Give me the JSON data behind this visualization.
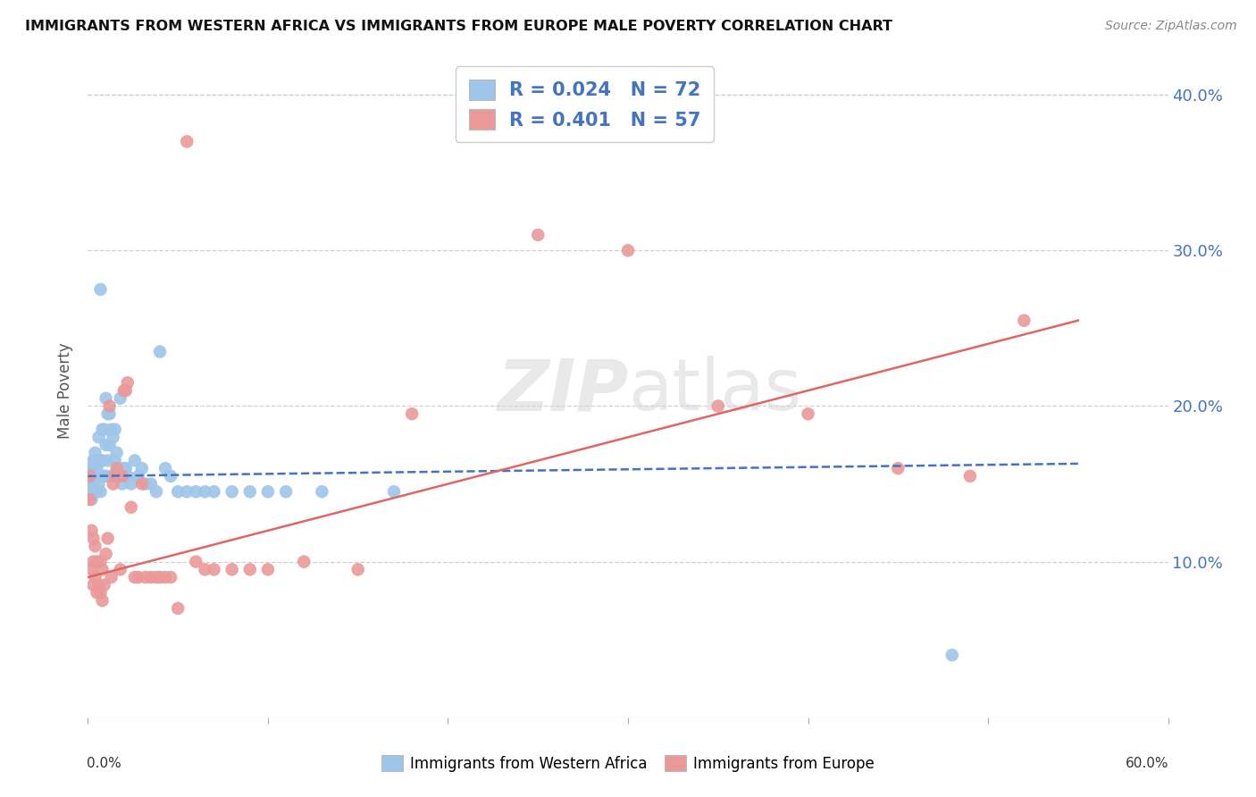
{
  "title": "IMMIGRANTS FROM WESTERN AFRICA VS IMMIGRANTS FROM EUROPE MALE POVERTY CORRELATION CHART",
  "source": "Source: ZipAtlas.com",
  "ylabel": "Male Poverty",
  "xlim": [
    0.0,
    0.6
  ],
  "ylim": [
    0.0,
    0.42
  ],
  "ytick_vals": [
    0.1,
    0.2,
    0.3,
    0.4
  ],
  "ytick_labels": [
    "10.0%",
    "20.0%",
    "30.0%",
    "40.0%"
  ],
  "series1_name": "Immigrants from Western Africa",
  "series2_name": "Immigrants from Europe",
  "series1_R": "0.024",
  "series1_N": "72",
  "series2_R": "0.401",
  "series2_N": "57",
  "series1_color": "#9fc5e8",
  "series2_color": "#ea9999",
  "trendline1_color": "#4472c4",
  "trendline2_color": "#e06666",
  "background_color": "#ffffff",
  "grid_color": "#d0d0d0",
  "series1_x": [
    0.001,
    0.001,
    0.001,
    0.002,
    0.002,
    0.002,
    0.002,
    0.002,
    0.003,
    0.003,
    0.003,
    0.003,
    0.003,
    0.004,
    0.004,
    0.004,
    0.004,
    0.005,
    0.005,
    0.005,
    0.005,
    0.006,
    0.006,
    0.006,
    0.007,
    0.007,
    0.007,
    0.008,
    0.008,
    0.009,
    0.009,
    0.01,
    0.01,
    0.01,
    0.011,
    0.011,
    0.012,
    0.012,
    0.013,
    0.013,
    0.014,
    0.015,
    0.015,
    0.016,
    0.017,
    0.018,
    0.019,
    0.02,
    0.021,
    0.022,
    0.024,
    0.026,
    0.028,
    0.03,
    0.032,
    0.035,
    0.038,
    0.04,
    0.043,
    0.046,
    0.05,
    0.055,
    0.06,
    0.065,
    0.07,
    0.08,
    0.09,
    0.1,
    0.11,
    0.13,
    0.17,
    0.48
  ],
  "series1_y": [
    0.155,
    0.15,
    0.145,
    0.16,
    0.155,
    0.15,
    0.145,
    0.14,
    0.165,
    0.16,
    0.155,
    0.15,
    0.145,
    0.17,
    0.165,
    0.155,
    0.145,
    0.165,
    0.16,
    0.155,
    0.145,
    0.18,
    0.165,
    0.15,
    0.275,
    0.165,
    0.145,
    0.185,
    0.165,
    0.185,
    0.155,
    0.205,
    0.175,
    0.155,
    0.195,
    0.165,
    0.195,
    0.175,
    0.185,
    0.155,
    0.18,
    0.185,
    0.165,
    0.17,
    0.16,
    0.205,
    0.15,
    0.16,
    0.16,
    0.155,
    0.15,
    0.165,
    0.155,
    0.16,
    0.15,
    0.15,
    0.145,
    0.235,
    0.16,
    0.155,
    0.145,
    0.145,
    0.145,
    0.145,
    0.145,
    0.145,
    0.145,
    0.145,
    0.145,
    0.145,
    0.145,
    0.04
  ],
  "series2_x": [
    0.001,
    0.001,
    0.002,
    0.002,
    0.003,
    0.003,
    0.003,
    0.004,
    0.004,
    0.005,
    0.005,
    0.006,
    0.007,
    0.007,
    0.008,
    0.008,
    0.009,
    0.01,
    0.011,
    0.012,
    0.013,
    0.014,
    0.015,
    0.016,
    0.018,
    0.019,
    0.02,
    0.021,
    0.022,
    0.024,
    0.026,
    0.028,
    0.03,
    0.032,
    0.035,
    0.038,
    0.04,
    0.043,
    0.046,
    0.05,
    0.055,
    0.06,
    0.065,
    0.07,
    0.08,
    0.09,
    0.1,
    0.12,
    0.15,
    0.18,
    0.25,
    0.3,
    0.35,
    0.4,
    0.45,
    0.49,
    0.52
  ],
  "series2_y": [
    0.155,
    0.14,
    0.12,
    0.095,
    0.115,
    0.1,
    0.085,
    0.11,
    0.09,
    0.1,
    0.08,
    0.085,
    0.1,
    0.08,
    0.095,
    0.075,
    0.085,
    0.105,
    0.115,
    0.2,
    0.09,
    0.15,
    0.155,
    0.16,
    0.095,
    0.155,
    0.21,
    0.21,
    0.215,
    0.135,
    0.09,
    0.09,
    0.15,
    0.09,
    0.09,
    0.09,
    0.09,
    0.09,
    0.09,
    0.07,
    0.37,
    0.1,
    0.095,
    0.095,
    0.095,
    0.095,
    0.095,
    0.1,
    0.095,
    0.195,
    0.31,
    0.3,
    0.2,
    0.195,
    0.16,
    0.155,
    0.255
  ],
  "trendline1_x": [
    0.0,
    0.55
  ],
  "trendline1_y": [
    0.155,
    0.163
  ],
  "trendline2_x": [
    0.0,
    0.55
  ],
  "trendline2_y": [
    0.09,
    0.255
  ]
}
